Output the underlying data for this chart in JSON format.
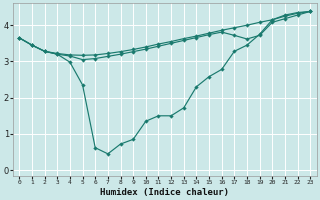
{
  "xlabel": "Humidex (Indice chaleur)",
  "bg_color": "#cce8e8",
  "grid_color": "#ffffff",
  "line_color": "#1a7a6e",
  "xlim": [
    -0.5,
    23.5
  ],
  "ylim": [
    -0.15,
    4.6
  ],
  "xticks": [
    0,
    1,
    2,
    3,
    4,
    5,
    6,
    7,
    8,
    9,
    10,
    11,
    12,
    13,
    14,
    15,
    16,
    17,
    18,
    19,
    20,
    21,
    22,
    23
  ],
  "yticks": [
    0,
    1,
    2,
    3,
    4
  ],
  "line1_x": [
    0,
    1,
    2,
    3,
    4,
    5,
    6,
    7,
    8,
    9,
    10,
    11,
    12,
    13,
    14,
    15,
    16,
    17,
    18,
    19,
    20,
    21,
    22,
    23
  ],
  "line1_y": [
    3.65,
    3.45,
    3.28,
    3.22,
    3.18,
    3.17,
    3.18,
    3.22,
    3.27,
    3.33,
    3.4,
    3.48,
    3.55,
    3.63,
    3.7,
    3.78,
    3.86,
    3.93,
    4.0,
    4.08,
    4.15,
    4.25,
    4.33,
    4.38
  ],
  "line2_x": [
    0,
    1,
    2,
    3,
    4,
    5,
    6,
    7,
    8,
    9,
    10,
    11,
    12,
    13,
    14,
    15,
    16,
    17,
    18,
    19,
    20,
    21,
    22,
    23
  ],
  "line2_y": [
    3.65,
    3.45,
    3.28,
    3.2,
    3.15,
    3.05,
    3.08,
    3.14,
    3.2,
    3.27,
    3.34,
    3.42,
    3.5,
    3.58,
    3.66,
    3.74,
    3.81,
    3.72,
    3.62,
    3.72,
    4.08,
    4.18,
    4.28,
    4.38
  ],
  "line3_x": [
    0,
    1,
    2,
    3,
    4,
    5,
    6,
    7,
    8,
    9,
    10,
    11,
    12,
    13,
    14,
    15,
    16,
    17,
    18,
    19,
    20,
    21,
    22,
    23
  ],
  "line3_y": [
    3.65,
    3.45,
    3.28,
    3.2,
    2.98,
    2.35,
    0.62,
    0.45,
    0.72,
    0.85,
    1.35,
    1.5,
    1.5,
    1.72,
    2.3,
    2.58,
    2.78,
    3.28,
    3.45,
    3.75,
    4.15,
    4.28,
    4.35,
    4.38
  ]
}
